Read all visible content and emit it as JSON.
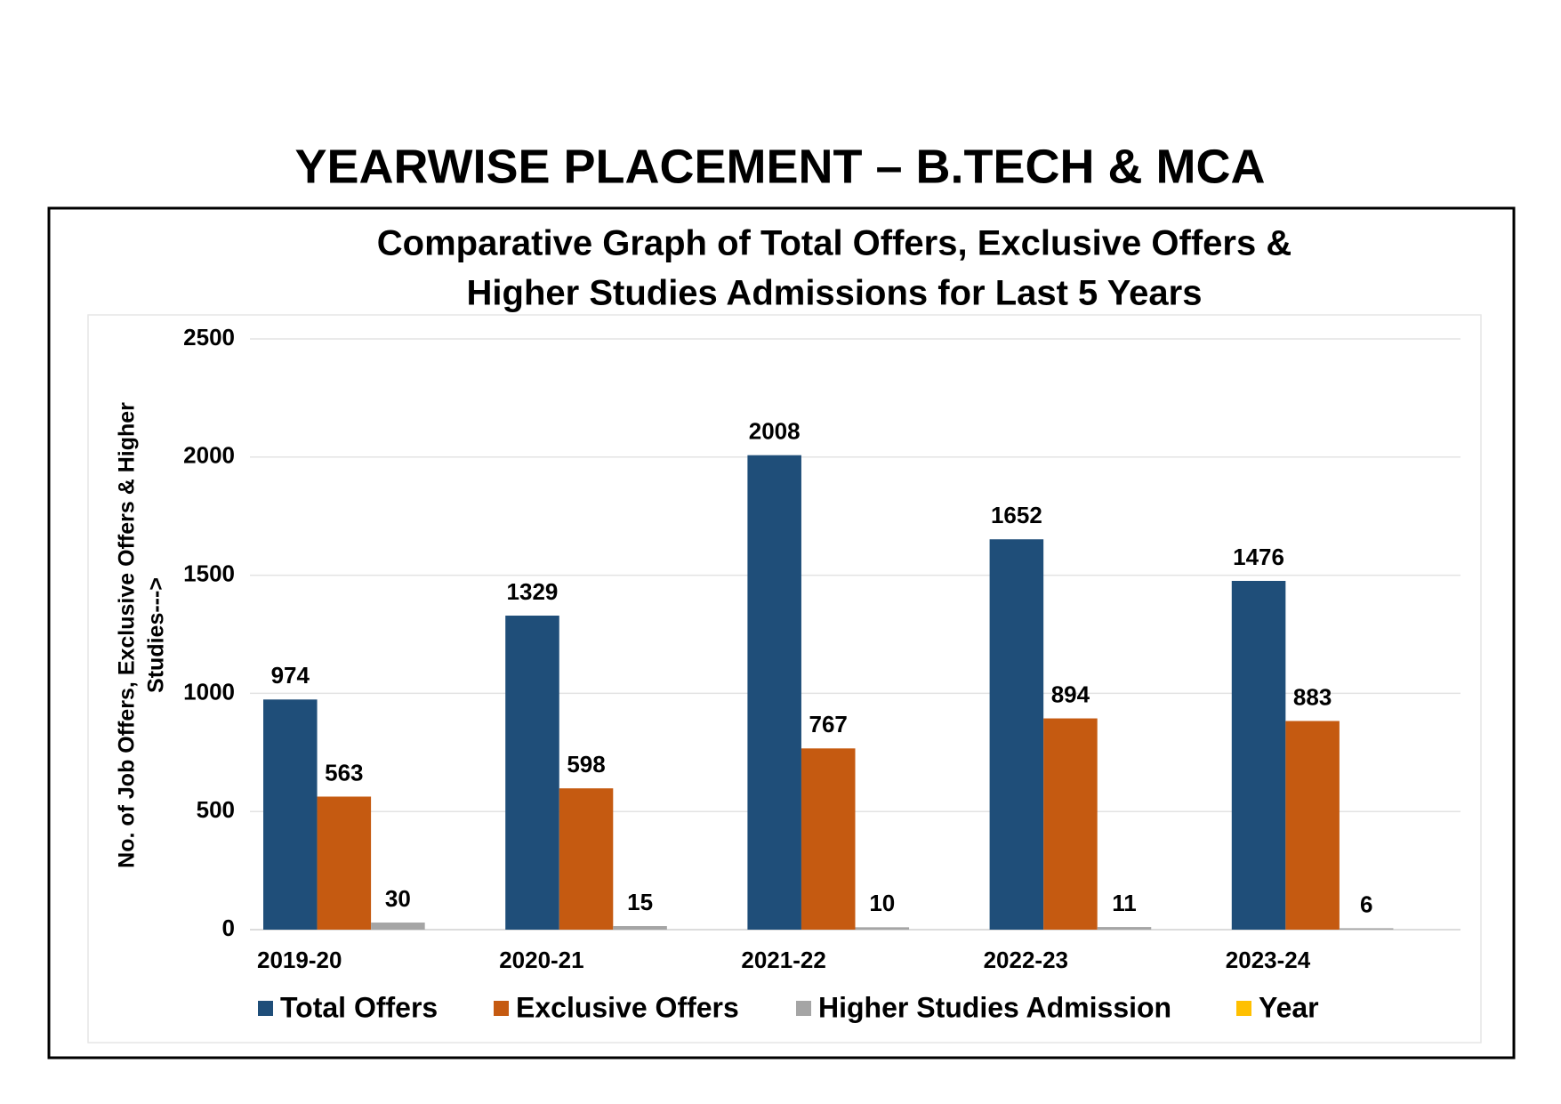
{
  "header": {
    "title": "YEARWISE PLACEMENT – B.TECH & MCA"
  },
  "chart_data": {
    "type": "bar",
    "title": [
      "Comparative Graph of Total Offers, Exclusive Offers &",
      "Higher Studies Admissions for Last 5 Years"
    ],
    "y_label": [
      "No. of Job Offers, Exclusive Offers & Higher",
      "Studies--->"
    ],
    "categories": [
      "2019-20",
      "2020-21",
      "2021-22",
      "2022-23",
      "2023-24"
    ],
    "series": [
      {
        "name": "Total Offers",
        "color": "#1f4e79",
        "values": [
          974,
          1329,
          2008,
          1652,
          1476
        ]
      },
      {
        "name": "Exclusive Offers",
        "color": "#c55a11",
        "values": [
          563,
          598,
          767,
          894,
          883
        ]
      },
      {
        "name": "Higher Studies Admission",
        "color": "#a5a5a5",
        "values": [
          30,
          15,
          10,
          11,
          6
        ]
      },
      {
        "name": "Year",
        "color": "#ffc000",
        "values": [
          null,
          null,
          null,
          null,
          null
        ]
      }
    ],
    "ylim": [
      0,
      2500
    ],
    "yticks": [
      0,
      500,
      1000,
      1500,
      2000,
      2500
    ],
    "grid": true,
    "legend": "bottom"
  }
}
